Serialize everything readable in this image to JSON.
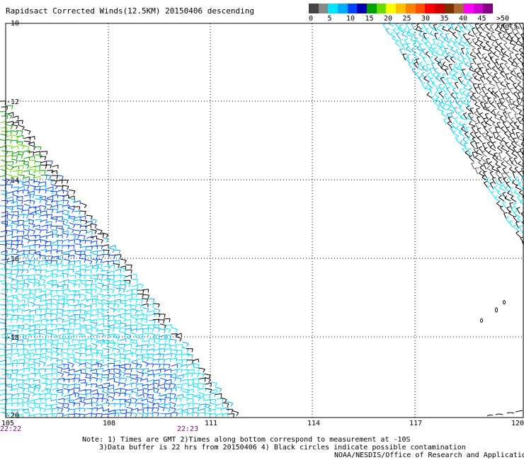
{
  "header": {
    "title": "Rapidsact Corrected Winds(12.5KM) 20150406 descending"
  },
  "colorbar": {
    "colors": [
      "#444444",
      "#888888",
      "#00e5ff",
      "#00aaff",
      "#0044ff",
      "#0000aa",
      "#00a000",
      "#66dd00",
      "#ffff00",
      "#ffc000",
      "#ff8000",
      "#ff5000",
      "#ff0000",
      "#cc0000",
      "#7a3000",
      "#aa6633",
      "#ff00ff",
      "#cc00cc",
      "#880088"
    ],
    "labels": [
      "0",
      "5",
      "10",
      "15",
      "20",
      "25",
      "30",
      "35",
      "40",
      "45",
      ">50 knots"
    ]
  },
  "axes": {
    "lon_ticks": [
      "105",
      "108",
      "111",
      "114",
      "117",
      "120"
    ],
    "lat_ticks": [
      "-10",
      "-12",
      "-14",
      "-16",
      "-18",
      "-20"
    ]
  },
  "times": {
    "left": "22:22",
    "mid": "22:23"
  },
  "notes": {
    "line1": "Note: 1) Times are GMT 2)Times along bottom correspond to measurement at -10S",
    "line2": "3)Data buffer is 22 hrs from 20150406 4) Black circles indicate possible contamination",
    "line3": "NOAA/NESDIS/Office of Research and Applications"
  }
}
